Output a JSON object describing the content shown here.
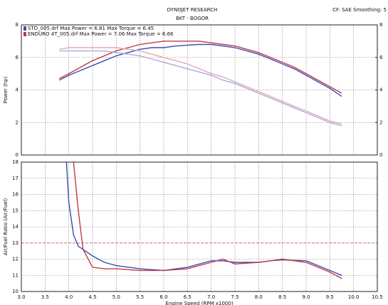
{
  "chart_data": [
    {
      "type": "line",
      "title": "DYNOJET RESEARCH",
      "subtitle": "BKT - BOGOR",
      "note": "CF: SAE  Smoothing: 5",
      "ylabel": "Power (hp)",
      "legend": [
        {
          "text": "STD_005.drf Max Power = 6.81   Max Torque = 6.45",
          "color": "#3a4db0"
        },
        {
          "text": "ENDURO 4T_005.drf Max Power = 7.06   Max Torque = 6.66",
          "color": "#c0394a"
        }
      ],
      "x": [
        3.8,
        4.0,
        4.25,
        4.5,
        4.75,
        5.0,
        5.25,
        5.5,
        5.75,
        6.0,
        6.25,
        6.5,
        6.75,
        7.0,
        7.25,
        7.5,
        7.75,
        8.0,
        8.25,
        8.5,
        8.75,
        9.0,
        9.25,
        9.5,
        9.75
      ],
      "series": [
        {
          "color": "#3a4db0",
          "values": [
            4.6,
            4.9,
            5.2,
            5.5,
            5.8,
            6.1,
            6.3,
            6.5,
            6.6,
            6.6,
            6.7,
            6.75,
            6.8,
            6.8,
            6.7,
            6.6,
            6.4,
            6.2,
            5.9,
            5.6,
            5.3,
            4.9,
            4.5,
            4.1,
            3.6
          ]
        },
        {
          "color": "#c0394a",
          "values": [
            4.7,
            5.0,
            5.4,
            5.8,
            6.1,
            6.4,
            6.6,
            6.8,
            6.9,
            7.0,
            7.0,
            7.0,
            7.0,
            6.9,
            6.8,
            6.7,
            6.5,
            6.3,
            6.0,
            5.7,
            5.4,
            5.0,
            4.6,
            4.2,
            3.8
          ]
        },
        {
          "color": "#a9acd6",
          "axis": "y2",
          "values": [
            6.4,
            6.4,
            6.4,
            6.4,
            6.4,
            6.3,
            6.2,
            6.1,
            5.9,
            5.7,
            5.5,
            5.3,
            5.1,
            4.9,
            4.6,
            4.4,
            4.1,
            3.8,
            3.5,
            3.2,
            2.9,
            2.6,
            2.3,
            2.0,
            1.8
          ]
        },
        {
          "color": "#e3a9b4",
          "axis": "y2",
          "values": [
            6.5,
            6.6,
            6.6,
            6.6,
            6.6,
            6.6,
            6.5,
            6.4,
            6.2,
            6.0,
            5.8,
            5.6,
            5.3,
            5.0,
            4.8,
            4.5,
            4.2,
            3.9,
            3.6,
            3.3,
            3.0,
            2.7,
            2.4,
            2.1,
            1.9
          ]
        }
      ],
      "xlim": [
        3.0,
        10.5
      ],
      "ylim": [
        0,
        8
      ],
      "yticks": [
        0,
        2,
        4,
        6,
        8
      ],
      "y2lim": [
        0,
        8
      ],
      "y2ticks": [
        0,
        2,
        4,
        6,
        8
      ],
      "grid": true
    },
    {
      "type": "line",
      "ylabel": "Air/Fuel Ratio (Air/Fuel)",
      "xlabel": "Engine Speed (RPM x1000)",
      "x": [
        3.95,
        4.0,
        4.1,
        4.2,
        4.3,
        4.5,
        4.75,
        5.0,
        5.5,
        6.0,
        6.5,
        7.0,
        7.25,
        7.5,
        8.0,
        8.25,
        8.5,
        9.0,
        9.5,
        9.75
      ],
      "series": [
        {
          "color": "#3a4db0",
          "values": [
            18,
            15.5,
            13.5,
            12.8,
            12.6,
            12.2,
            11.8,
            11.6,
            11.4,
            11.3,
            11.5,
            11.9,
            11.9,
            11.8,
            11.8,
            11.9,
            11.95,
            11.9,
            11.3,
            11.0
          ]
        },
        {
          "color": "#c0394a",
          "values": [
            null,
            null,
            18,
            15,
            12.6,
            11.5,
            11.4,
            11.4,
            11.3,
            11.3,
            11.4,
            11.8,
            12.0,
            11.7,
            11.8,
            11.9,
            12.0,
            11.8,
            11.2,
            10.8
          ]
        }
      ],
      "reference_line": 13,
      "reference_color": "#d98a8a",
      "xlim": [
        3.0,
        10.5
      ],
      "xticks": [
        {
          "value": 3,
          "label": "3.0"
        },
        3.5,
        {
          "value": 4,
          "label": "4.0"
        },
        4.5,
        {
          "value": 5,
          "label": "5.0"
        },
        5.5,
        {
          "value": 6,
          "label": "6.0"
        },
        6.5,
        {
          "value": 7,
          "label": "7.0"
        },
        7.5,
        {
          "value": 8,
          "label": "8.0"
        },
        8.5,
        {
          "value": 9,
          "label": "9.0"
        },
        9.5,
        {
          "value": 10,
          "label": "10.0"
        },
        10.5
      ],
      "ylim": [
        10,
        18
      ],
      "yticks": [
        10,
        11,
        12,
        13,
        14,
        15,
        16,
        17,
        18
      ],
      "grid": true
    }
  ]
}
